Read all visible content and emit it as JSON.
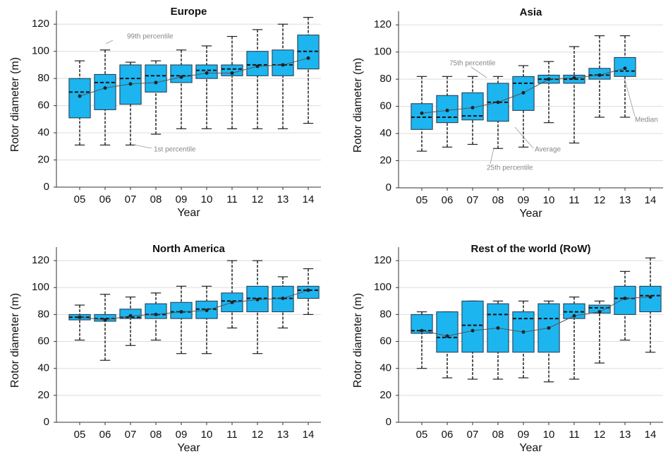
{
  "chart_data": [
    {
      "type": "box",
      "title": "Europe",
      "x_label": "Year",
      "y_label": "Rotor diameter (m)",
      "categories": [
        "05",
        "06",
        "07",
        "08",
        "09",
        "10",
        "11",
        "12",
        "13",
        "14"
      ],
      "whislo": [
        31,
        31,
        31,
        39,
        43,
        43,
        43,
        43,
        43,
        47
      ],
      "q1": [
        51,
        57,
        61,
        70,
        77,
        80,
        82,
        82,
        82,
        87
      ],
      "med": [
        70,
        77,
        80,
        82,
        82,
        86,
        87,
        90,
        90,
        100
      ],
      "q3": [
        80,
        83,
        90,
        90,
        90,
        90,
        90,
        100,
        101,
        112
      ],
      "whishi": [
        93,
        101,
        92,
        93,
        101,
        104,
        111,
        116,
        120,
        125
      ],
      "mean": [
        67,
        73,
        76,
        77,
        81,
        84,
        84,
        89,
        90,
        95
      ],
      "color": "#1cb5f0",
      "ylim": [
        0,
        130
      ],
      "yticks": [
        0,
        20,
        40,
        60,
        80,
        100,
        120
      ],
      "grid": true,
      "annotations": [
        "99th percentile",
        "1st percentile"
      ]
    },
    {
      "type": "box",
      "title": "Asia",
      "x_label": "Year",
      "y_label": "Rotor diameter (m)",
      "categories": [
        "05",
        "06",
        "07",
        "08",
        "09",
        "10",
        "11",
        "12",
        "13",
        "14"
      ],
      "whislo": [
        27,
        30,
        32,
        29,
        30,
        48,
        33,
        52,
        52,
        null
      ],
      "q1": [
        43,
        48,
        50,
        49,
        57,
        77,
        77,
        80,
        82,
        null
      ],
      "med": [
        52,
        52,
        53,
        63,
        77,
        80,
        80,
        83,
        86,
        null
      ],
      "q3": [
        62,
        68,
        70,
        77,
        82,
        83,
        83,
        88,
        96,
        null
      ],
      "whishi": [
        82,
        82,
        82,
        82,
        90,
        93,
        104,
        112,
        112,
        null
      ],
      "mean": [
        55,
        57,
        59,
        63,
        70,
        80,
        81,
        83,
        88,
        null
      ],
      "color": "#1cb5f0",
      "ylim": [
        0,
        130
      ],
      "yticks": [
        0,
        20,
        40,
        60,
        80,
        100,
        120
      ],
      "grid": true,
      "annotations": [
        "75th percentile",
        "25th percentile",
        "Average",
        "Median"
      ]
    },
    {
      "type": "box",
      "title": "North America",
      "x_label": "Year",
      "y_label": "Rotor diameter (m)",
      "categories": [
        "05",
        "06",
        "07",
        "08",
        "09",
        "10",
        "11",
        "12",
        "13",
        "14"
      ],
      "whislo": [
        61,
        46,
        57,
        61,
        51,
        51,
        70,
        51,
        70,
        80
      ],
      "q1": [
        76,
        75,
        77,
        77,
        77,
        77,
        82,
        82,
        82,
        92
      ],
      "med": [
        78,
        77,
        78,
        80,
        82,
        84,
        90,
        92,
        92,
        98
      ],
      "q3": [
        80,
        80,
        84,
        88,
        89,
        90,
        96,
        101,
        101,
        101
      ],
      "whishi": [
        87,
        95,
        93,
        96,
        101,
        101,
        120,
        120,
        108,
        114
      ],
      "mean": [
        78,
        76,
        79,
        80,
        82,
        83,
        89,
        91,
        92,
        98
      ],
      "color": "#1cb5f0",
      "ylim": [
        0,
        130
      ],
      "yticks": [
        0,
        20,
        40,
        60,
        80,
        100,
        120
      ],
      "grid": true
    },
    {
      "type": "box",
      "title": "Rest of the world (RoW)",
      "x_label": "Year",
      "y_label": "Rotor diameter (m)",
      "categories": [
        "05",
        "06",
        "07",
        "08",
        "09",
        "10",
        "11",
        "12",
        "13",
        "14"
      ],
      "whislo": [
        40,
        33,
        32,
        32,
        33,
        30,
        32,
        44,
        61,
        52
      ],
      "q1": [
        66,
        52,
        52,
        52,
        52,
        52,
        77,
        81,
        80,
        82
      ],
      "med": [
        68,
        63,
        72,
        80,
        77,
        77,
        82,
        85,
        92,
        94
      ],
      "q3": [
        80,
        82,
        90,
        88,
        82,
        88,
        88,
        87,
        101,
        101
      ],
      "whishi": [
        82,
        82,
        90,
        90,
        90,
        90,
        93,
        90,
        112,
        122
      ],
      "mean": [
        68,
        64,
        68,
        70,
        67,
        70,
        79,
        82,
        92,
        93
      ],
      "color": "#1cb5f0",
      "ylim": [
        0,
        130
      ],
      "yticks": [
        0,
        20,
        40,
        60,
        80,
        100,
        120
      ],
      "grid": true
    }
  ]
}
